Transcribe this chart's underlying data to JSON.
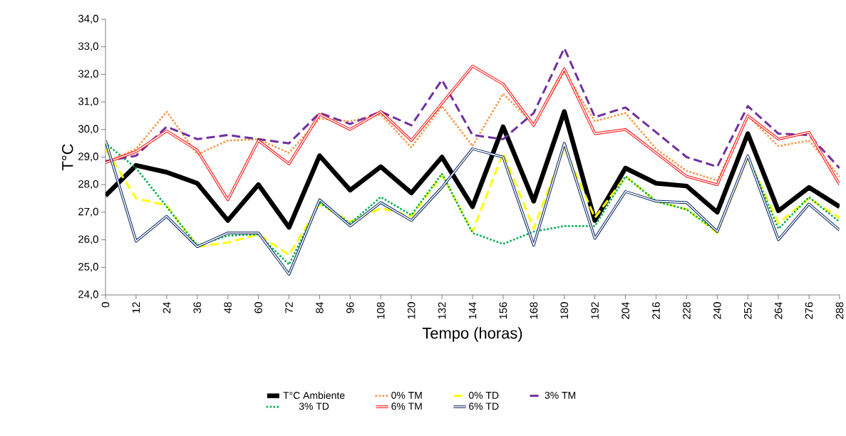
{
  "chart_data": {
    "type": "line",
    "xlabel": "Tempo (horas)",
    "ylabel": "T°C",
    "categories": [
      "0",
      "12",
      "24",
      "36",
      "48",
      "60",
      "72",
      "84",
      "96",
      "108",
      "120",
      "132",
      "144",
      "156",
      "168",
      "180",
      "192",
      "204",
      "216",
      "228",
      "240",
      "252",
      "264",
      "276",
      "288"
    ],
    "ylim": [
      24,
      34
    ],
    "yticks": [
      {
        "value": 24,
        "label": "24,0"
      },
      {
        "value": 25,
        "label": "25,0"
      },
      {
        "value": 26,
        "label": "26,0"
      },
      {
        "value": 27,
        "label": "27,0"
      },
      {
        "value": 28,
        "label": "28,0"
      },
      {
        "value": 29,
        "label": "29,0"
      },
      {
        "value": 30,
        "label": "30,0"
      },
      {
        "value": 31,
        "label": "31,0"
      },
      {
        "value": 32,
        "label": "32,0"
      },
      {
        "value": 33,
        "label": "33,0"
      },
      {
        "value": 34,
        "label": "34,0"
      }
    ],
    "grid": false,
    "legend": "bottom",
    "marker": "none",
    "series": [
      {
        "name": "T°C Ambiente",
        "color": "#000000",
        "line_style": "solid",
        "values": [
          27.6,
          28.7,
          28.45,
          28.05,
          26.7,
          28.0,
          26.45,
          29.05,
          27.8,
          28.65,
          27.7,
          29.0,
          27.2,
          30.1,
          27.4,
          30.65,
          26.7,
          28.6,
          28.05,
          27.95,
          27.0,
          29.85,
          27.05,
          27.9,
          27.2
        ]
      },
      {
        "name": "0% TM",
        "color": "#f79646",
        "line_style": "dotted",
        "values": [
          28.8,
          29.3,
          30.65,
          29.1,
          29.6,
          29.65,
          29.15,
          30.4,
          30.3,
          30.55,
          29.35,
          30.85,
          29.4,
          31.3,
          30.2,
          32.1,
          30.3,
          30.6,
          29.3,
          28.5,
          28.15,
          30.5,
          29.4,
          29.6,
          28.3
        ]
      },
      {
        "name": "0% TD",
        "color": "#ffff00",
        "line_style": "dashed",
        "values": [
          29.3,
          27.5,
          27.25,
          25.75,
          25.9,
          26.2,
          25.45,
          27.3,
          26.65,
          27.15,
          26.85,
          28.35,
          26.3,
          29.15,
          26.4,
          29.35,
          26.8,
          28.3,
          27.4,
          27.1,
          26.25,
          29.0,
          26.6,
          27.5,
          26.8
        ]
      },
      {
        "name": "3% TM",
        "color": "#7030a0",
        "line_style": "dashed",
        "values": [
          28.85,
          29.05,
          30.1,
          29.65,
          29.8,
          29.65,
          29.5,
          30.6,
          30.2,
          30.65,
          30.15,
          31.8,
          29.8,
          29.65,
          30.6,
          32.95,
          30.45,
          30.8,
          29.9,
          29.0,
          28.65,
          30.85,
          29.85,
          29.8,
          28.6
        ]
      },
      {
        "name": "3% TD",
        "color": "#00b050",
        "line_style": "dotted",
        "values": [
          29.5,
          28.6,
          27.2,
          25.8,
          26.15,
          26.2,
          25.1,
          27.35,
          26.6,
          27.55,
          26.9,
          28.4,
          26.25,
          25.85,
          26.3,
          26.5,
          26.5,
          28.3,
          27.4,
          27.1,
          26.3,
          29.05,
          26.4,
          27.55,
          26.65
        ]
      },
      {
        "name": "6% TM",
        "color": "#ff0000",
        "line_style": "solid",
        "values": [
          28.8,
          29.2,
          29.95,
          29.25,
          27.45,
          29.6,
          28.75,
          30.55,
          30.0,
          30.65,
          29.6,
          30.95,
          32.3,
          31.65,
          30.15,
          32.2,
          29.85,
          30.0,
          29.15,
          28.3,
          28.0,
          30.5,
          29.65,
          29.9,
          28.0
        ]
      },
      {
        "name": "6% TD",
        "color": "#002060",
        "line_style": "solid",
        "values": [
          29.6,
          25.95,
          26.85,
          25.75,
          26.25,
          26.25,
          24.75,
          27.45,
          26.5,
          27.35,
          26.7,
          27.9,
          29.3,
          29.0,
          25.8,
          29.5,
          26.05,
          27.75,
          27.4,
          27.35,
          26.3,
          29.05,
          26.0,
          27.3,
          26.35
        ]
      }
    ]
  }
}
